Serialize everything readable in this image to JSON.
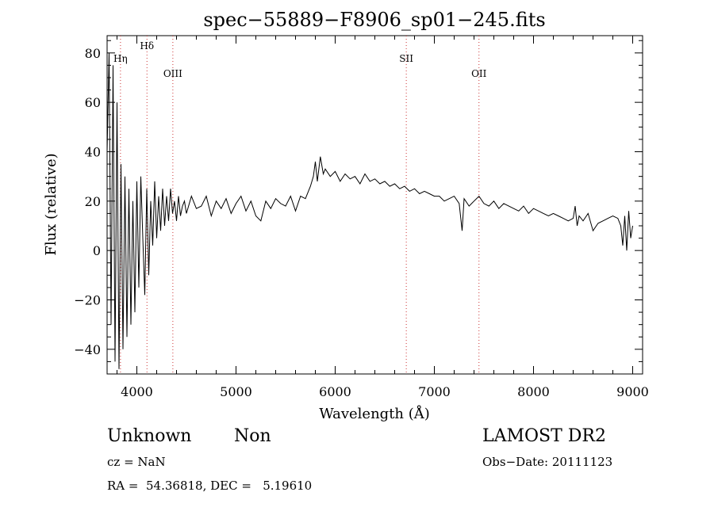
{
  "chart_data": {
    "type": "line",
    "title": "spec−55889−F8906_sp01−245.fits",
    "xlabel": "Wavelength (Å)",
    "ylabel": "Flux (relative)",
    "xlim": [
      3700,
      9100
    ],
    "ylim": [
      -50,
      87
    ],
    "xticks": [
      4000,
      5000,
      6000,
      7000,
      8000,
      9000
    ],
    "xtick_labels": [
      "4000",
      "5000",
      "6000",
      "7000",
      "8000",
      "9000"
    ],
    "yticks": [
      -40,
      -20,
      0,
      20,
      40,
      60,
      80
    ],
    "ytick_labels": [
      "−40",
      "−20",
      "0",
      "20",
      "40",
      "60",
      "80"
    ],
    "grid": false,
    "series": [
      {
        "x": [
          3700,
          3720,
          3740,
          3760,
          3780,
          3800,
          3820,
          3840,
          3860,
          3880,
          3900,
          3920,
          3940,
          3960,
          3980,
          4000,
          4020,
          4040,
          4060,
          4080,
          4100,
          4120,
          4140,
          4160,
          4180,
          4200,
          4220,
          4240,
          4260,
          4280,
          4300,
          4320,
          4340,
          4360,
          4380,
          4400,
          4420,
          4440,
          4460,
          4480,
          4500,
          4550,
          4600,
          4650,
          4700,
          4750,
          4800,
          4850,
          4900,
          4950,
          5000,
          5050,
          5100,
          5150,
          5200,
          5250,
          5300,
          5350,
          5400,
          5450,
          5500,
          5550,
          5600,
          5650,
          5700,
          5750,
          5780,
          5800,
          5820,
          5850,
          5880,
          5900,
          5950,
          6000,
          6050,
          6100,
          6150,
          6200,
          6250,
          6300,
          6350,
          6400,
          6450,
          6500,
          6550,
          6600,
          6650,
          6700,
          6750,
          6800,
          6850,
          6900,
          6950,
          7000,
          7050,
          7100,
          7150,
          7200,
          7250,
          7280,
          7300,
          7350,
          7400,
          7450,
          7500,
          7550,
          7600,
          7650,
          7700,
          7750,
          7800,
          7850,
          7900,
          7950,
          8000,
          8050,
          8100,
          8150,
          8200,
          8250,
          8300,
          8350,
          8400,
          8420,
          8440,
          8460,
          8500,
          8550,
          8600,
          8650,
          8700,
          8750,
          8800,
          8850,
          8880,
          8900,
          8920,
          8940,
          8960,
          8980,
          9000
        ],
        "y": [
          40,
          80,
          -30,
          75,
          -45,
          60,
          -48,
          35,
          -40,
          30,
          -35,
          25,
          -30,
          20,
          -25,
          28,
          -15,
          30,
          5,
          -18,
          25,
          -10,
          20,
          2,
          28,
          5,
          22,
          8,
          25,
          10,
          22,
          12,
          25,
          15,
          20,
          12,
          22,
          14,
          18,
          20,
          15,
          22,
          17,
          18,
          22,
          14,
          20,
          17,
          21,
          15,
          19,
          22,
          16,
          20,
          14,
          12,
          20,
          17,
          21,
          19,
          18,
          22,
          16,
          22,
          21,
          26,
          30,
          36,
          28,
          38,
          31,
          33,
          30,
          32,
          28,
          31,
          29,
          30,
          27,
          31,
          28,
          29,
          27,
          28,
          26,
          27,
          25,
          26,
          24,
          25,
          23,
          24,
          23,
          22,
          22,
          20,
          21,
          22,
          19,
          8,
          21,
          18,
          20,
          22,
          19,
          18,
          20,
          17,
          19,
          18,
          17,
          16,
          18,
          15,
          17,
          16,
          15,
          14,
          15,
          14,
          13,
          12,
          13,
          18,
          10,
          14,
          12,
          15,
          8,
          11,
          12,
          13,
          14,
          13,
          10,
          2,
          14,
          0,
          16,
          5,
          10
        ]
      }
    ],
    "lines": [
      {
        "label": "Hη",
        "x": 3835
      },
      {
        "label": "Hδ",
        "x": 4102
      },
      {
        "label": "OIII",
        "x": 4363
      },
      {
        "label": "SII",
        "x": 6717
      },
      {
        "label": "OII",
        "x": 7450
      }
    ]
  },
  "info": {
    "class_label": "Unknown",
    "subclass_label": "Non",
    "cz_text": "cz = NaN",
    "coords_text": "RA =  54.36818, DEC =   5.19610",
    "survey_text": "LAMOST DR2",
    "obs_date_text": "Obs−Date: 20111123"
  },
  "colors": {
    "axis": "#000000",
    "line": "#000000",
    "marker_line": "#cc3333"
  }
}
